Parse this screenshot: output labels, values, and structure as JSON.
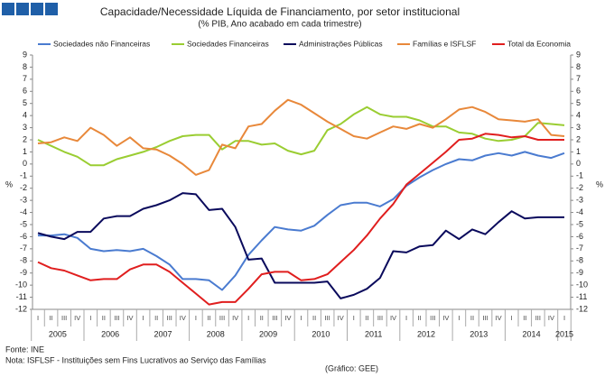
{
  "chart_data": {
    "type": "line",
    "title": "Capacidade/Necessidade Líquida de Financiamento, por setor institucional",
    "subtitle": "(% PIB, Ano acabado em cada trimestre)",
    "y_axis_label": "%",
    "categories": [
      "I",
      "II",
      "III",
      "IV",
      "I",
      "II",
      "III",
      "IV",
      "I",
      "II",
      "III",
      "IV",
      "I",
      "II",
      "III",
      "IV",
      "I",
      "II",
      "III",
      "IV",
      "I",
      "II",
      "III",
      "IV",
      "I",
      "II",
      "III",
      "IV",
      "I",
      "II",
      "III",
      "IV",
      "I",
      "II",
      "III",
      "IV",
      "I",
      "II",
      "III",
      "IV",
      "I"
    ],
    "years": [
      "2005",
      "2006",
      "2007",
      "2008",
      "2009",
      "2010",
      "2011",
      "2012",
      "2013",
      "2014",
      "2015"
    ],
    "ylim": [
      -12,
      9
    ],
    "yticks": [
      -12,
      -11,
      -10,
      -9,
      -8,
      -7,
      -6,
      -5,
      -4,
      -3,
      -2,
      -1,
      0,
      1,
      2,
      3,
      4,
      5,
      6,
      7,
      8,
      9
    ],
    "series": [
      {
        "name": "Sociedades não Financeiras",
        "color": "#4a7bd0",
        "values": [
          -5.9,
          -5.9,
          -5.8,
          -6.1,
          -7.0,
          -7.2,
          -7.1,
          -7.2,
          -7.0,
          -7.6,
          -8.3,
          -9.5,
          -9.5,
          -9.6,
          -10.4,
          -9.2,
          -7.5,
          -6.3,
          -5.2,
          -5.4,
          -5.5,
          -5.1,
          -4.2,
          -3.4,
          -3.2,
          -3.2,
          -3.5,
          -2.9,
          -1.8,
          -1.1,
          -0.5,
          0,
          0.4,
          0.3,
          0.7,
          0.9,
          0.7,
          1.0,
          0.7,
          0.5,
          0.9
        ]
      },
      {
        "name": "Sociedades Financeiras",
        "color": "#9acd32",
        "values": [
          2.0,
          1.5,
          1.0,
          0.6,
          -0.1,
          -0.1,
          0.4,
          0.7,
          1.0,
          1.4,
          1.9,
          2.3,
          2.4,
          2.4,
          1.2,
          1.9,
          1.9,
          1.6,
          1.7,
          1.1,
          0.8,
          1.1,
          2.8,
          3.3,
          4.1,
          4.7,
          4.1,
          3.9,
          3.9,
          3.6,
          3.1,
          3.1,
          2.6,
          2.5,
          2.1,
          1.9,
          2.0,
          2.3,
          3.4,
          3.3,
          3.2
        ]
      },
      {
        "name": "Administrações Públicas",
        "color": "#0a0a5c",
        "values": [
          -5.7,
          -6.0,
          -6.2,
          -5.6,
          -5.6,
          -4.5,
          -4.3,
          -4.3,
          -3.7,
          -3.4,
          -3.0,
          -2.4,
          -2.5,
          -3.8,
          -3.7,
          -5.2,
          -7.9,
          -7.8,
          -9.8,
          -9.8,
          -9.8,
          -9.8,
          -9.7,
          -11.1,
          -10.8,
          -10.3,
          -9.4,
          -7.2,
          -7.3,
          -6.8,
          -6.7,
          -5.5,
          -6.2,
          -5.4,
          -5.8,
          -4.8,
          -3.9,
          -4.5,
          -4.4,
          -4.4,
          -4.4
        ]
      },
      {
        "name": "Famílias e ISFLSF",
        "color": "#e8883a",
        "values": [
          1.7,
          1.8,
          2.2,
          1.9,
          3.0,
          2.4,
          1.5,
          2.2,
          1.3,
          1.2,
          0.7,
          0.0,
          -0.9,
          -0.5,
          1.6,
          1.3,
          3.1,
          3.3,
          4.4,
          5.3,
          4.9,
          4.2,
          3.5,
          2.9,
          2.3,
          2.1,
          2.6,
          3.1,
          2.9,
          3.3,
          3.0,
          3.7,
          4.5,
          4.7,
          4.3,
          3.7,
          3.6,
          3.5,
          3.7,
          2.4,
          2.3
        ]
      },
      {
        "name": "Total da Economia",
        "color": "#e01e1e",
        "values": [
          -8.1,
          -8.6,
          -8.8,
          -9.2,
          -9.6,
          -9.5,
          -9.5,
          -8.7,
          -8.3,
          -8.3,
          -8.9,
          -9.8,
          -10.7,
          -11.6,
          -11.4,
          -11.4,
          -10.3,
          -9.1,
          -8.9,
          -8.9,
          -9.6,
          -9.5,
          -9.1,
          -8.1,
          -7.1,
          -5.9,
          -4.5,
          -3.3,
          -1.7,
          -0.8,
          0.1,
          1.0,
          2.0,
          2.1,
          2.5,
          2.4,
          2.2,
          2.3,
          2.0,
          2.0,
          2.0
        ]
      }
    ],
    "notes": [
      "Fonte: INE",
      "Nota: ISFLSF - Instituições sem Fins Lucrativos ao Serviço das Famílias"
    ],
    "credit": "(Gráfico: GEE)"
  }
}
